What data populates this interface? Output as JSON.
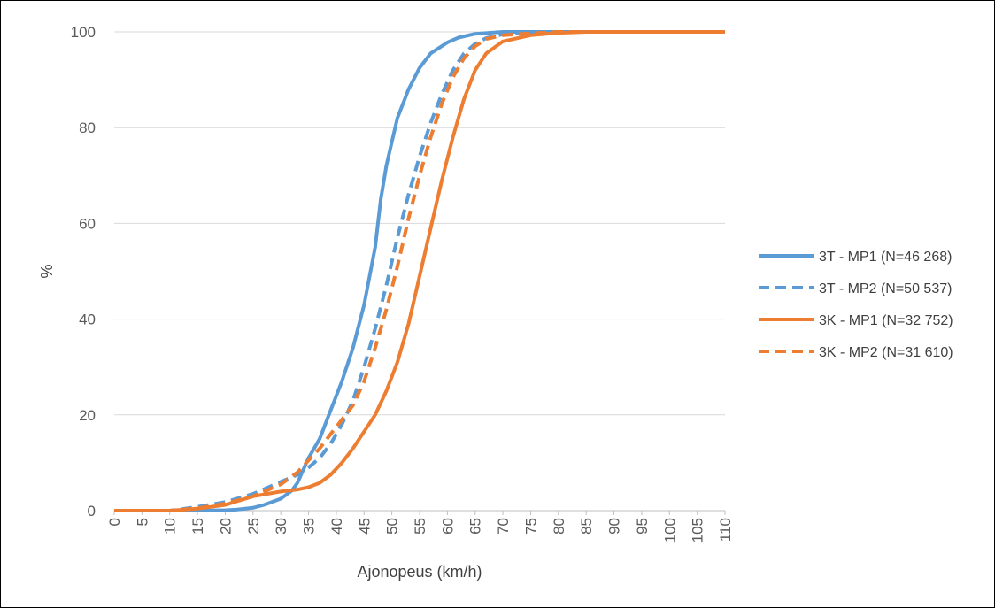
{
  "chart_data": {
    "type": "line",
    "title": "",
    "xlabel": "Ajonopeus (km/h)",
    "ylabel": "%",
    "xlim": [
      0,
      110
    ],
    "ylim": [
      0,
      100
    ],
    "x_ticks": [
      "0",
      "5",
      "10",
      "15",
      "20",
      "25",
      "30",
      "35",
      "40",
      "45",
      "50",
      "55",
      "60",
      "65",
      "70",
      "75",
      "80",
      "85",
      "90",
      "95",
      "100",
      "105",
      "110"
    ],
    "y_ticks": [
      "0",
      "20",
      "40",
      "60",
      "80",
      "100"
    ],
    "grid": "horizontal",
    "legend_position": "right",
    "series": [
      {
        "name": "3T - MP1 (N=46 268)",
        "color": "#5B9BD5",
        "dash": "solid",
        "points": [
          [
            0,
            0
          ],
          [
            10,
            0
          ],
          [
            15,
            0
          ],
          [
            20,
            0.1
          ],
          [
            22,
            0.2
          ],
          [
            25,
            0.6
          ],
          [
            27,
            1.2
          ],
          [
            30,
            2.5
          ],
          [
            32,
            4.2
          ],
          [
            33,
            5.8
          ],
          [
            35,
            11
          ],
          [
            37,
            15
          ],
          [
            39,
            21
          ],
          [
            41,
            27
          ],
          [
            43,
            34
          ],
          [
            45,
            43
          ],
          [
            47,
            55
          ],
          [
            48,
            65
          ],
          [
            49,
            72
          ],
          [
            50,
            77
          ],
          [
            51,
            82
          ],
          [
            52,
            85
          ],
          [
            53,
            88
          ],
          [
            55,
            92.5
          ],
          [
            57,
            95.5
          ],
          [
            60,
            97.8
          ],
          [
            62,
            98.8
          ],
          [
            65,
            99.6
          ],
          [
            70,
            100
          ],
          [
            110,
            100
          ]
        ]
      },
      {
        "name": "3T - MP2 (N=50 537)",
        "color": "#5B9BD5",
        "dash": "dashed",
        "points": [
          [
            0,
            0
          ],
          [
            10,
            0
          ],
          [
            12,
            0.3
          ],
          [
            15,
            0.8
          ],
          [
            20,
            1.8
          ],
          [
            25,
            3.5
          ],
          [
            30,
            6
          ],
          [
            33,
            7.5
          ],
          [
            35,
            9
          ],
          [
            37,
            11
          ],
          [
            39,
            14
          ],
          [
            41,
            18
          ],
          [
            43,
            23
          ],
          [
            45,
            30
          ],
          [
            47,
            38
          ],
          [
            49,
            47
          ],
          [
            51,
            57
          ],
          [
            53,
            66
          ],
          [
            55,
            74
          ],
          [
            57,
            81
          ],
          [
            59,
            87
          ],
          [
            61,
            92
          ],
          [
            63,
            95.5
          ],
          [
            65,
            97.5
          ],
          [
            67,
            98.7
          ],
          [
            70,
            99.5
          ],
          [
            75,
            100
          ],
          [
            110,
            100
          ]
        ]
      },
      {
        "name": "3K - MP1 (N=32 752)",
        "color": "#ED7D31",
        "dash": "solid",
        "points": [
          [
            0,
            0
          ],
          [
            10,
            0
          ],
          [
            15,
            0.4
          ],
          [
            20,
            1.2
          ],
          [
            25,
            3
          ],
          [
            30,
            4
          ],
          [
            33,
            4.4
          ],
          [
            35,
            4.9
          ],
          [
            37,
            5.8
          ],
          [
            39,
            7.5
          ],
          [
            41,
            10
          ],
          [
            43,
            13
          ],
          [
            45,
            16.5
          ],
          [
            47,
            20
          ],
          [
            49,
            25
          ],
          [
            51,
            31
          ],
          [
            53,
            39
          ],
          [
            55,
            49
          ],
          [
            57,
            59
          ],
          [
            59,
            69
          ],
          [
            61,
            78
          ],
          [
            63,
            86
          ],
          [
            65,
            92
          ],
          [
            67,
            95.5
          ],
          [
            70,
            98
          ],
          [
            75,
            99.3
          ],
          [
            80,
            99.8
          ],
          [
            85,
            100
          ],
          [
            110,
            100
          ]
        ]
      },
      {
        "name": "3K - MP2 (N=31 610)",
        "color": "#ED7D31",
        "dash": "dashed",
        "points": [
          [
            0,
            0
          ],
          [
            10,
            0
          ],
          [
            15,
            0.5
          ],
          [
            20,
            1.5
          ],
          [
            25,
            3
          ],
          [
            30,
            5.5
          ],
          [
            33,
            8
          ],
          [
            35,
            10.5
          ],
          [
            37,
            13
          ],
          [
            39,
            16
          ],
          [
            41,
            19
          ],
          [
            43,
            22
          ],
          [
            45,
            27
          ],
          [
            47,
            34
          ],
          [
            49,
            42
          ],
          [
            51,
            51
          ],
          [
            53,
            61
          ],
          [
            55,
            70
          ],
          [
            57,
            78
          ],
          [
            59,
            85
          ],
          [
            61,
            90.5
          ],
          [
            63,
            94.5
          ],
          [
            65,
            97
          ],
          [
            67,
            98.5
          ],
          [
            70,
            99.3
          ],
          [
            75,
            99.7
          ],
          [
            80,
            100
          ],
          [
            110,
            100
          ]
        ]
      }
    ]
  }
}
